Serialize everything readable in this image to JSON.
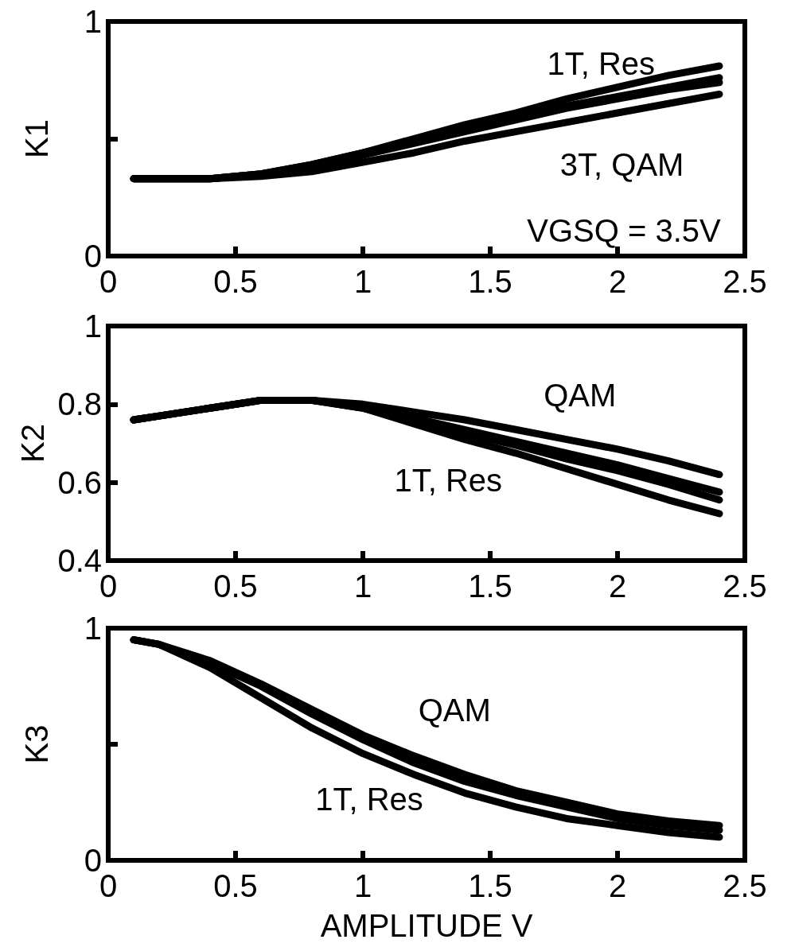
{
  "chart_data": [
    {
      "type": "line",
      "ylabel": "K1",
      "x": [
        0.1,
        0.2,
        0.4,
        0.6,
        0.8,
        1.0,
        1.2,
        1.4,
        1.6,
        1.8,
        2.0,
        2.2,
        2.4
      ],
      "series": [
        {
          "color": "#000000",
          "values": [
            0.33,
            0.33,
            0.33,
            0.35,
            0.39,
            0.44,
            0.5,
            0.56,
            0.61,
            0.67,
            0.72,
            0.77,
            0.81
          ]
        },
        {
          "color": "#000000",
          "values": [
            0.33,
            0.33,
            0.33,
            0.35,
            0.39,
            0.44,
            0.49,
            0.54,
            0.59,
            0.64,
            0.68,
            0.72,
            0.76
          ]
        },
        {
          "color": "#000000",
          "values": [
            0.33,
            0.33,
            0.33,
            0.35,
            0.38,
            0.43,
            0.48,
            0.53,
            0.58,
            0.63,
            0.67,
            0.71,
            0.74
          ]
        },
        {
          "color": "#000000",
          "values": [
            0.33,
            0.33,
            0.33,
            0.34,
            0.36,
            0.4,
            0.44,
            0.49,
            0.53,
            0.57,
            0.61,
            0.65,
            0.69
          ]
        }
      ],
      "xlim": [
        0,
        2.5
      ],
      "xticks": [
        0,
        0.5,
        1,
        1.5,
        2,
        2.5
      ],
      "ylim": [
        0,
        1
      ],
      "yticks": [
        0,
        {
          "value": 0.5,
          "label": null
        },
        1
      ],
      "annotations": [
        "1T, Res",
        "3T, QAM",
        "VGSQ = 3.5V"
      ],
      "marker": "none",
      "line_style": "solid"
    },
    {
      "type": "line",
      "ylabel": "K2",
      "x": [
        0.1,
        0.2,
        0.4,
        0.6,
        0.8,
        1.0,
        1.2,
        1.4,
        1.6,
        1.8,
        2.0,
        2.2,
        2.4
      ],
      "series": [
        {
          "color": "#000000",
          "values": [
            0.76,
            0.77,
            0.79,
            0.81,
            0.81,
            0.8,
            0.78,
            0.76,
            0.735,
            0.71,
            0.685,
            0.655,
            0.62
          ]
        },
        {
          "color": "#000000",
          "values": [
            0.76,
            0.77,
            0.79,
            0.81,
            0.81,
            0.795,
            0.765,
            0.735,
            0.705,
            0.675,
            0.645,
            0.61,
            0.575
          ]
        },
        {
          "color": "#000000",
          "values": [
            0.76,
            0.77,
            0.79,
            0.81,
            0.81,
            0.79,
            0.76,
            0.725,
            0.695,
            0.66,
            0.63,
            0.595,
            0.555
          ]
        },
        {
          "color": "#000000",
          "values": [
            0.76,
            0.77,
            0.79,
            0.81,
            0.81,
            0.79,
            0.75,
            0.71,
            0.675,
            0.635,
            0.595,
            0.555,
            0.52
          ]
        }
      ],
      "xlim": [
        0,
        2.5
      ],
      "xticks": [
        0,
        0.5,
        1,
        1.5,
        2,
        2.5
      ],
      "ylim": [
        0.4,
        1
      ],
      "yticks": [
        0.4,
        0.6,
        0.8,
        1
      ],
      "annotations": [
        "QAM",
        "1T, Res"
      ],
      "marker": "none",
      "line_style": "solid"
    },
    {
      "type": "line",
      "ylabel": "K3",
      "xlabel": "AMPLITUDE V",
      "x": [
        0.1,
        0.2,
        0.4,
        0.6,
        0.8,
        1.0,
        1.2,
        1.4,
        1.6,
        1.8,
        2.0,
        2.2,
        2.4
      ],
      "series": [
        {
          "color": "#000000",
          "values": [
            0.95,
            0.93,
            0.86,
            0.76,
            0.65,
            0.54,
            0.45,
            0.37,
            0.3,
            0.25,
            0.2,
            0.17,
            0.15
          ]
        },
        {
          "color": "#000000",
          "values": [
            0.95,
            0.93,
            0.85,
            0.75,
            0.63,
            0.52,
            0.42,
            0.34,
            0.28,
            0.23,
            0.18,
            0.15,
            0.13
          ]
        },
        {
          "color": "#000000",
          "values": [
            0.95,
            0.93,
            0.83,
            0.7,
            0.57,
            0.46,
            0.37,
            0.29,
            0.23,
            0.18,
            0.15,
            0.12,
            0.1
          ]
        }
      ],
      "xlim": [
        0,
        2.5
      ],
      "xticks": [
        0,
        0.5,
        1,
        1.5,
        2,
        2.5
      ],
      "ylim": [
        0,
        1
      ],
      "yticks": [
        0,
        {
          "value": 0.5,
          "label": null
        },
        1
      ],
      "annotations": [
        "QAM",
        "1T, Res"
      ],
      "marker": "none",
      "line_style": "solid"
    }
  ]
}
